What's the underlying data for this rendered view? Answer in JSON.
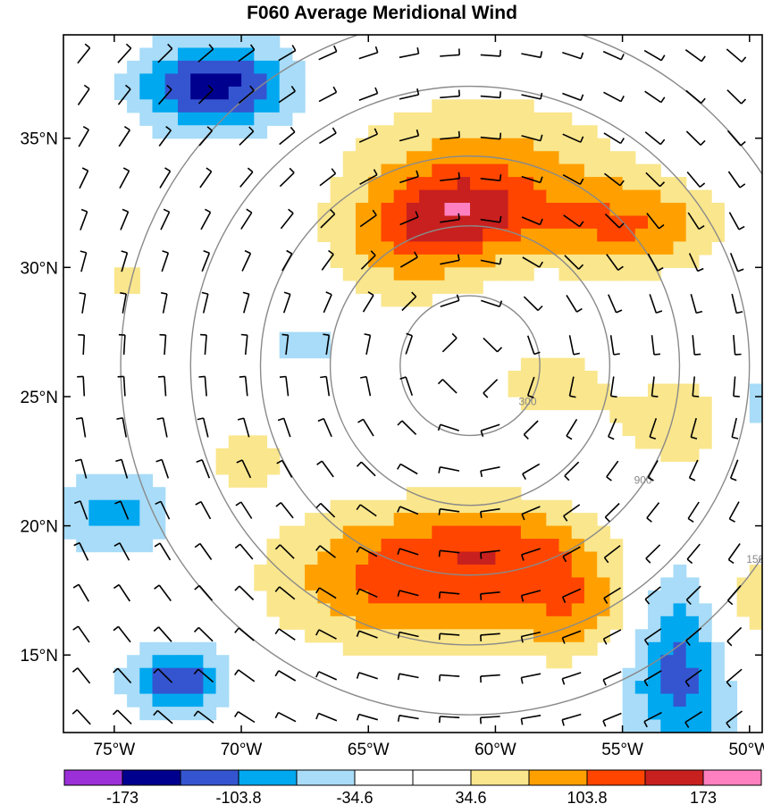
{
  "chart_data": {
    "type": "heatmap",
    "title": "F060 Average Meridional Wind",
    "x_axis": {
      "ticks": [
        {
          "value": -75,
          "label": "75°W"
        },
        {
          "value": -70,
          "label": "70°W"
        },
        {
          "value": -65,
          "label": "65°W"
        },
        {
          "value": -60,
          "label": "60°W"
        },
        {
          "value": -55,
          "label": "55°W"
        },
        {
          "value": -50,
          "label": "50°W"
        }
      ],
      "range": [
        -77.0,
        -49.5
      ]
    },
    "y_axis": {
      "ticks": [
        {
          "value": 15,
          "label": "15°N"
        },
        {
          "value": 20,
          "label": "20°N"
        },
        {
          "value": 25,
          "label": "25°N"
        },
        {
          "value": 30,
          "label": "30°N"
        },
        {
          "value": 35,
          "label": "35°N"
        }
      ],
      "range": [
        12.0,
        39.0
      ]
    },
    "colorbar": {
      "colors": [
        "#9b30d9",
        "#00008f",
        "#3555d0",
        "#00a8f0",
        "#a8dcf8",
        "#ffffff",
        "#ffffff",
        "#fae68c",
        "#ffa000",
        "#ff4500",
        "#c8201e",
        "#ff80c0"
      ],
      "labels": [
        {
          "boundary_index": 1,
          "label": "-173"
        },
        {
          "boundary_index": 3,
          "label": "-103.8"
        },
        {
          "boundary_index": 5,
          "label": "-34.6"
        },
        {
          "boundary_index": 7,
          "label": "34.6"
        },
        {
          "boundary_index": 9,
          "label": "103.8"
        },
        {
          "boundary_index": 11,
          "label": "173"
        }
      ]
    },
    "storm_center": {
      "lon": -61.0,
      "lat": 26.2
    },
    "range_rings": [
      {
        "radius_km": 300,
        "label": "300"
      },
      {
        "radius_km": 600,
        "label": ""
      },
      {
        "radius_km": 900,
        "label": "900"
      },
      {
        "radius_km": 1200,
        "label": ""
      },
      {
        "radius_km": 1500,
        "label": "1500"
      }
    ],
    "field_blobs": [
      {
        "lon": -60.5,
        "lat": 33.5,
        "a": 5.5,
        "b": 3.0,
        "v": 90
      },
      {
        "lon": -61.5,
        "lat": 32.0,
        "a": 3.0,
        "b": 1.6,
        "v": 80
      },
      {
        "lon": -63.5,
        "lat": 30.5,
        "a": 3.2,
        "b": 2.2,
        "v": 60
      },
      {
        "lon": -54.5,
        "lat": 31.5,
        "a": 3.5,
        "b": 1.8,
        "v": 90
      },
      {
        "lon": -52.5,
        "lat": 24.0,
        "a": 3.0,
        "b": 1.8,
        "v": 70
      },
      {
        "lon": -58.0,
        "lat": 25.5,
        "a": 2.2,
        "b": 1.4,
        "v": 70
      },
      {
        "lon": -64.0,
        "lat": 18.0,
        "a": 5.0,
        "b": 2.8,
        "v": 110
      },
      {
        "lon": -59.0,
        "lat": 19.0,
        "a": 4.0,
        "b": 2.0,
        "v": 85
      },
      {
        "lon": -56.5,
        "lat": 16.5,
        "a": 3.0,
        "b": 2.0,
        "v": 80
      },
      {
        "lon": -50.5,
        "lat": 16.5,
        "a": 2.0,
        "b": 3.0,
        "v": 90
      },
      {
        "lon": -70.0,
        "lat": 22.5,
        "a": 1.8,
        "b": 1.2,
        "v": 60
      },
      {
        "lon": -74.5,
        "lat": 29.5,
        "a": 1.5,
        "b": 1.5,
        "v": 45
      },
      {
        "lon": -71.0,
        "lat": 37.0,
        "a": 3.2,
        "b": 1.8,
        "v": -150
      },
      {
        "lon": -52.5,
        "lat": 15.0,
        "a": 2.5,
        "b": 4.0,
        "v": -140
      },
      {
        "lon": -72.5,
        "lat": 14.0,
        "a": 2.0,
        "b": 1.5,
        "v": -130
      },
      {
        "lon": -75.0,
        "lat": 20.5,
        "a": 2.5,
        "b": 1.8,
        "v": -80
      },
      {
        "lon": -50.0,
        "lat": 24.5,
        "a": 1.5,
        "b": 2.0,
        "v": -70
      },
      {
        "lon": -67.5,
        "lat": 27.0,
        "a": 1.2,
        "b": 1.0,
        "v": -60
      },
      {
        "lon": -60.8,
        "lat": 26.0,
        "a": 2.2,
        "b": 2.0,
        "v": -20
      }
    ]
  }
}
